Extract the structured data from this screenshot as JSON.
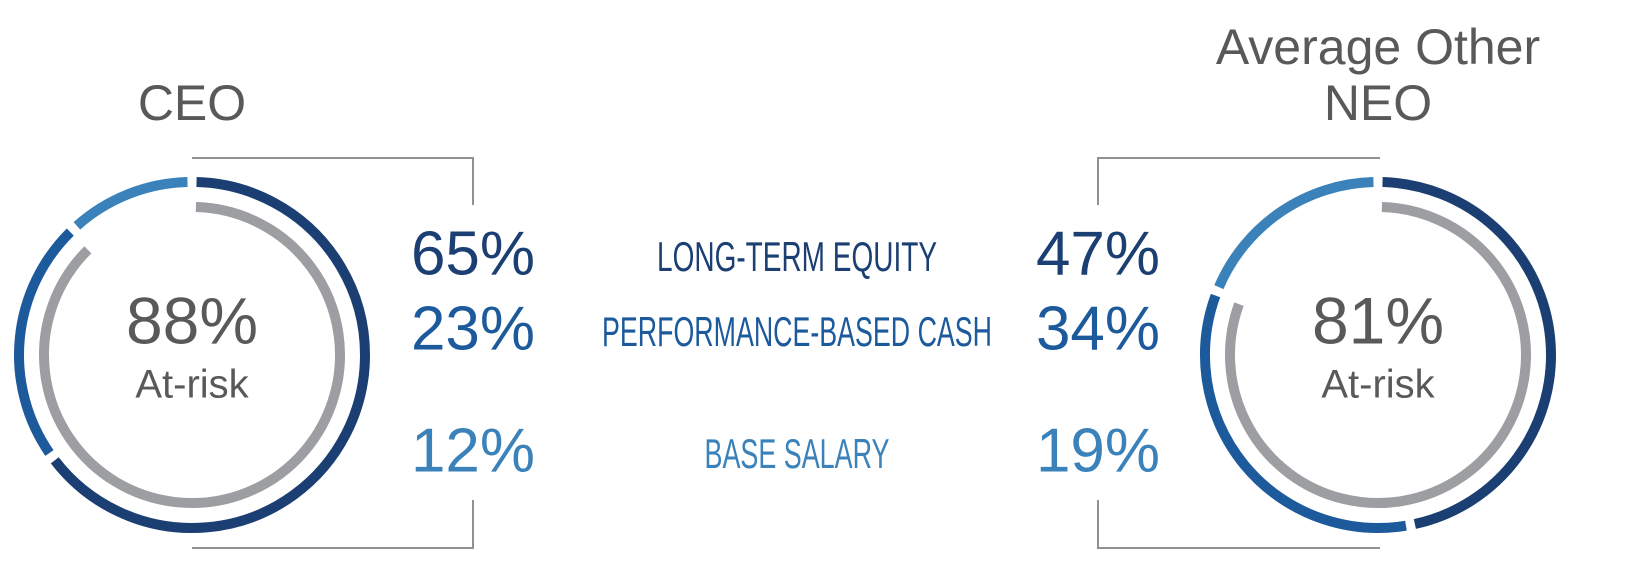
{
  "chart_data": {
    "type": "donut",
    "categories": [
      "LONG-TERM EQUITY",
      "PERFORMANCE-BASED CASH",
      "BASE SALARY"
    ],
    "colors": [
      "#1b3f72",
      "#1d5a9c",
      "#3a82b9"
    ],
    "at_risk_color": "#9c9ea1",
    "series": [
      {
        "name": "CEO",
        "values": [
          65,
          23,
          12
        ],
        "value_labels": [
          "65%",
          "23%",
          "12%"
        ],
        "at_risk": 88,
        "at_risk_label": "88%",
        "center_label": "At-risk"
      },
      {
        "name": "Average Other NEO",
        "values": [
          47,
          34,
          19
        ],
        "value_labels": [
          "47%",
          "34%",
          "19%"
        ],
        "at_risk": 81,
        "at_risk_label": "81%",
        "center_label": "At-risk"
      }
    ]
  }
}
